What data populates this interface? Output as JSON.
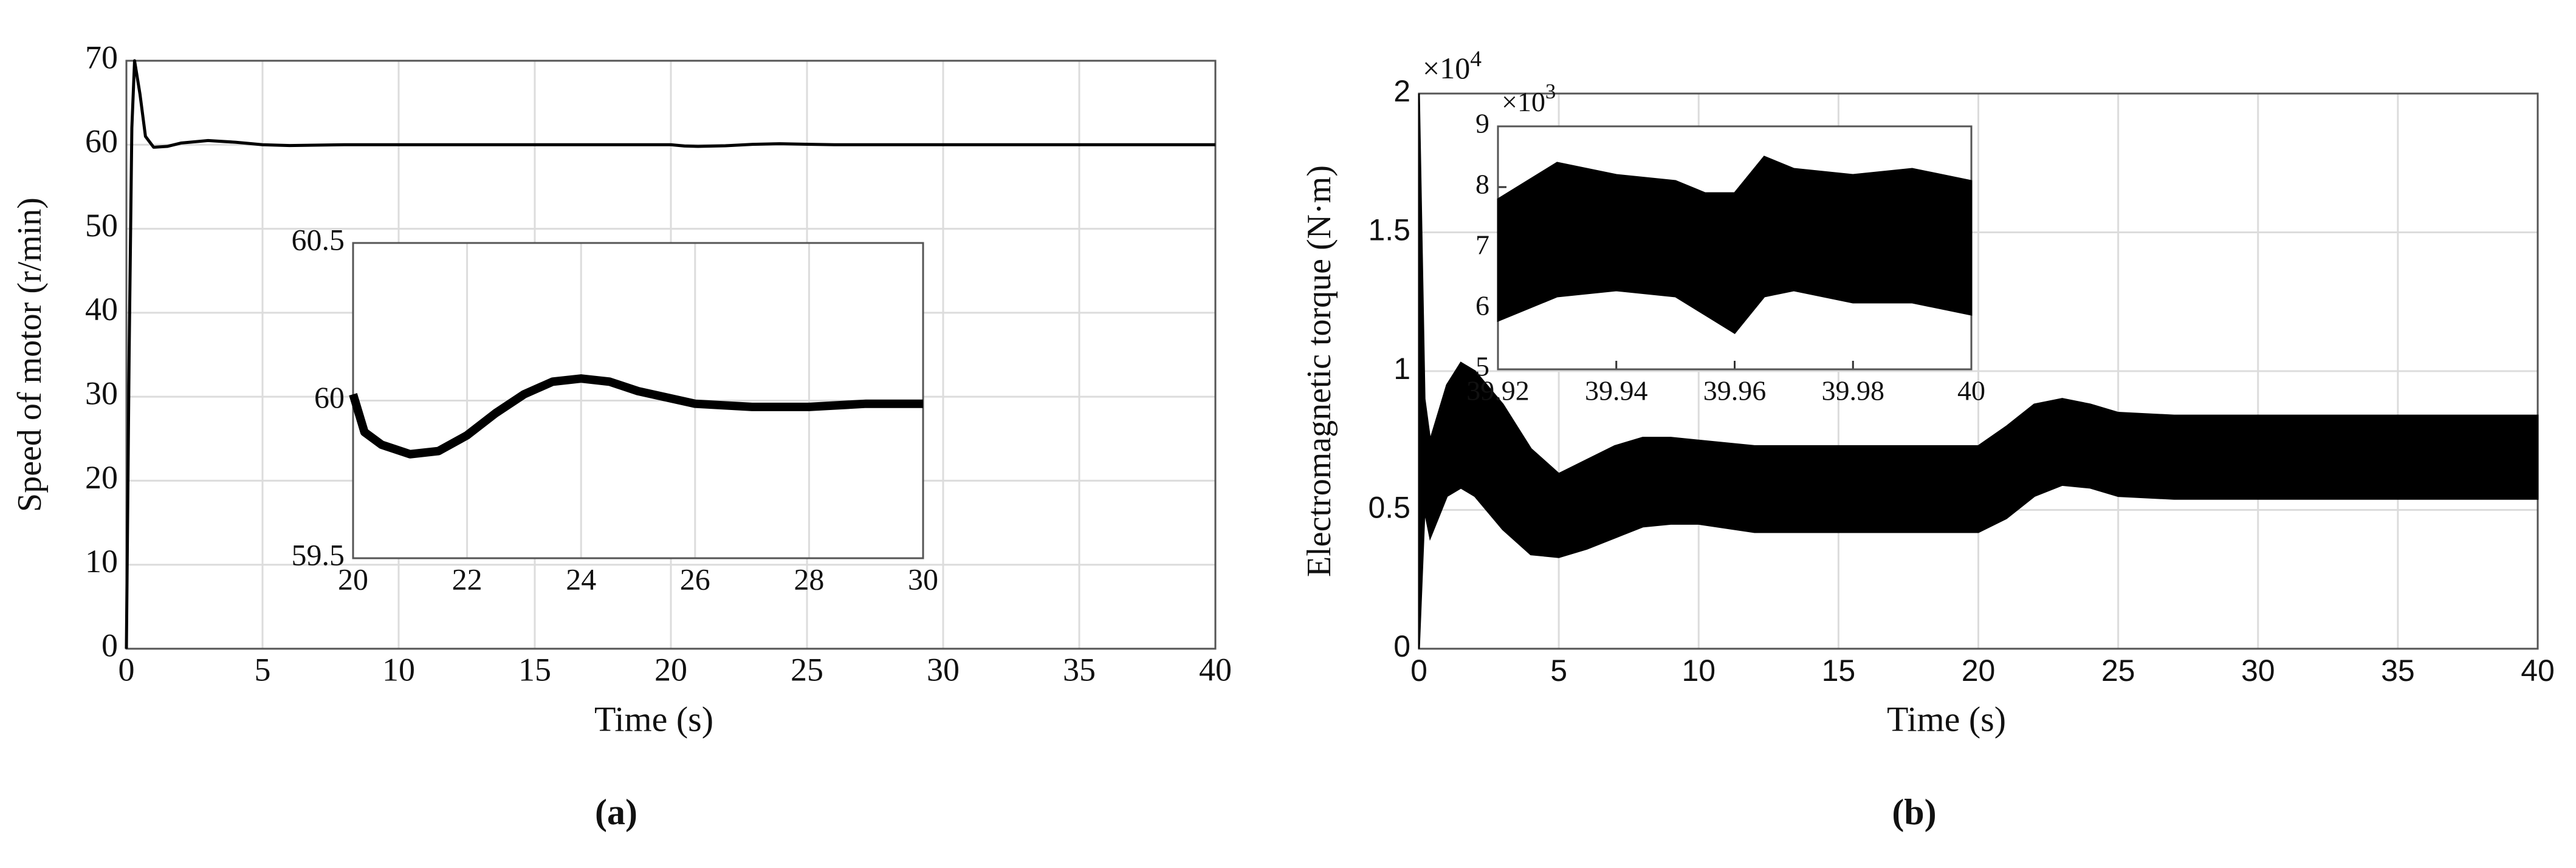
{
  "chart_data": [
    {
      "type": "line",
      "xlabel": "Time (s)",
      "ylabel": "Speed of motor  (r/min)",
      "panel_label": "(a)",
      "x": [
        0,
        0.1,
        0.2,
        0.3,
        0.5,
        0.7,
        1.0,
        1.5,
        2,
        3,
        4,
        5,
        6,
        8,
        10,
        15,
        20,
        20.5,
        21,
        22,
        23,
        24,
        25,
        26,
        28,
        30,
        35,
        40
      ],
      "series": [
        {
          "color": "#000000",
          "values": [
            0,
            35,
            62,
            70,
            66,
            61,
            59.7,
            59.8,
            60.2,
            60.5,
            60.3,
            60.0,
            59.9,
            60,
            60,
            60,
            60,
            59.85,
            59.8,
            59.88,
            60.05,
            60.12,
            60.06,
            60.0,
            60.0,
            60.0,
            60.0,
            60.0
          ]
        }
      ],
      "xlim": [
        0,
        40
      ],
      "xticks": [
        0,
        5,
        10,
        15,
        20,
        25,
        30,
        35,
        40
      ],
      "ylim": [
        0,
        70
      ],
      "yticks": [
        0,
        10,
        20,
        30,
        40,
        50,
        60,
        70
      ],
      "grid": true
    },
    {
      "type": "line",
      "x": [
        20,
        20.2,
        20.5,
        21,
        21.5,
        22,
        22.5,
        23,
        23.5,
        24,
        24.5,
        25,
        25.5,
        26,
        27,
        28,
        29,
        30
      ],
      "series": [
        {
          "color": "#000000",
          "values": [
            60.02,
            59.9,
            59.86,
            59.83,
            59.84,
            59.89,
            59.96,
            60.02,
            60.06,
            60.07,
            60.06,
            60.03,
            60.01,
            59.99,
            59.98,
            59.98,
            59.99,
            59.99
          ]
        }
      ],
      "xlim": [
        20,
        30
      ],
      "xticks": [
        20,
        22,
        24,
        26,
        28,
        30
      ],
      "ylim": [
        59.5,
        60.5
      ],
      "yticks": [
        59.5,
        60,
        60.5
      ],
      "grid": true
    },
    {
      "type": "band",
      "xlabel": "Time (s)",
      "ylabel": "Electromagnetic torque (N·m)",
      "panel_label": "(b)",
      "multiplier": {
        "base": "×10",
        "exponent": "4"
      },
      "x": [
        0,
        0.2,
        0.4,
        1,
        1.5,
        2,
        3,
        4,
        5,
        6,
        7,
        8,
        9,
        10,
        12,
        15,
        18,
        20,
        21,
        22,
        23,
        24,
        25,
        27,
        30,
        35,
        40
      ],
      "series": [
        {
          "color": "#000000",
          "values": [
            2,
            0.9,
            0.75,
            0.95,
            1.03,
            1.0,
            0.88,
            0.72,
            0.63,
            0.68,
            0.73,
            0.76,
            0.76,
            0.75,
            0.73,
            0.73,
            0.73,
            0.73,
            0.8,
            0.88,
            0.9,
            0.88,
            0.85,
            0.84,
            0.84,
            0.84,
            0.84
          ]
        },
        {
          "color": "#000000",
          "values": [
            0,
            0.5,
            0.4,
            0.55,
            0.58,
            0.55,
            0.43,
            0.34,
            0.33,
            0.36,
            0.4,
            0.44,
            0.45,
            0.45,
            0.42,
            0.42,
            0.42,
            0.42,
            0.47,
            0.55,
            0.59,
            0.58,
            0.55,
            0.54,
            0.54,
            0.54,
            0.54
          ]
        }
      ],
      "xlim": [
        0,
        40
      ],
      "xticks": [
        0,
        5,
        10,
        15,
        20,
        25,
        30,
        35,
        40
      ],
      "ylim": [
        0,
        2
      ],
      "yticks": [
        0,
        0.5,
        1,
        1.5,
        2
      ],
      "grid": true
    },
    {
      "type": "band",
      "multiplier": {
        "base": "×10",
        "exponent": "3"
      },
      "x": [
        39.92,
        39.93,
        39.94,
        39.95,
        39.955,
        39.96,
        39.965,
        39.97,
        39.98,
        39.99,
        40
      ],
      "series": [
        {
          "color": "#000000",
          "values": [
            7.8,
            8.4,
            8.2,
            8.1,
            7.9,
            7.9,
            8.5,
            8.3,
            8.2,
            8.3,
            8.1
          ]
        },
        {
          "color": "#000000",
          "values": [
            5.8,
            6.2,
            6.3,
            6.2,
            5.9,
            5.6,
            6.2,
            6.3,
            6.1,
            6.1,
            5.9
          ]
        }
      ],
      "xlim": [
        39.92,
        40
      ],
      "xticks": [
        39.92,
        39.94,
        39.96,
        39.98,
        40
      ],
      "ylim": [
        5,
        9
      ],
      "yticks": [
        5,
        6,
        7,
        8,
        9
      ],
      "grid": false
    }
  ]
}
